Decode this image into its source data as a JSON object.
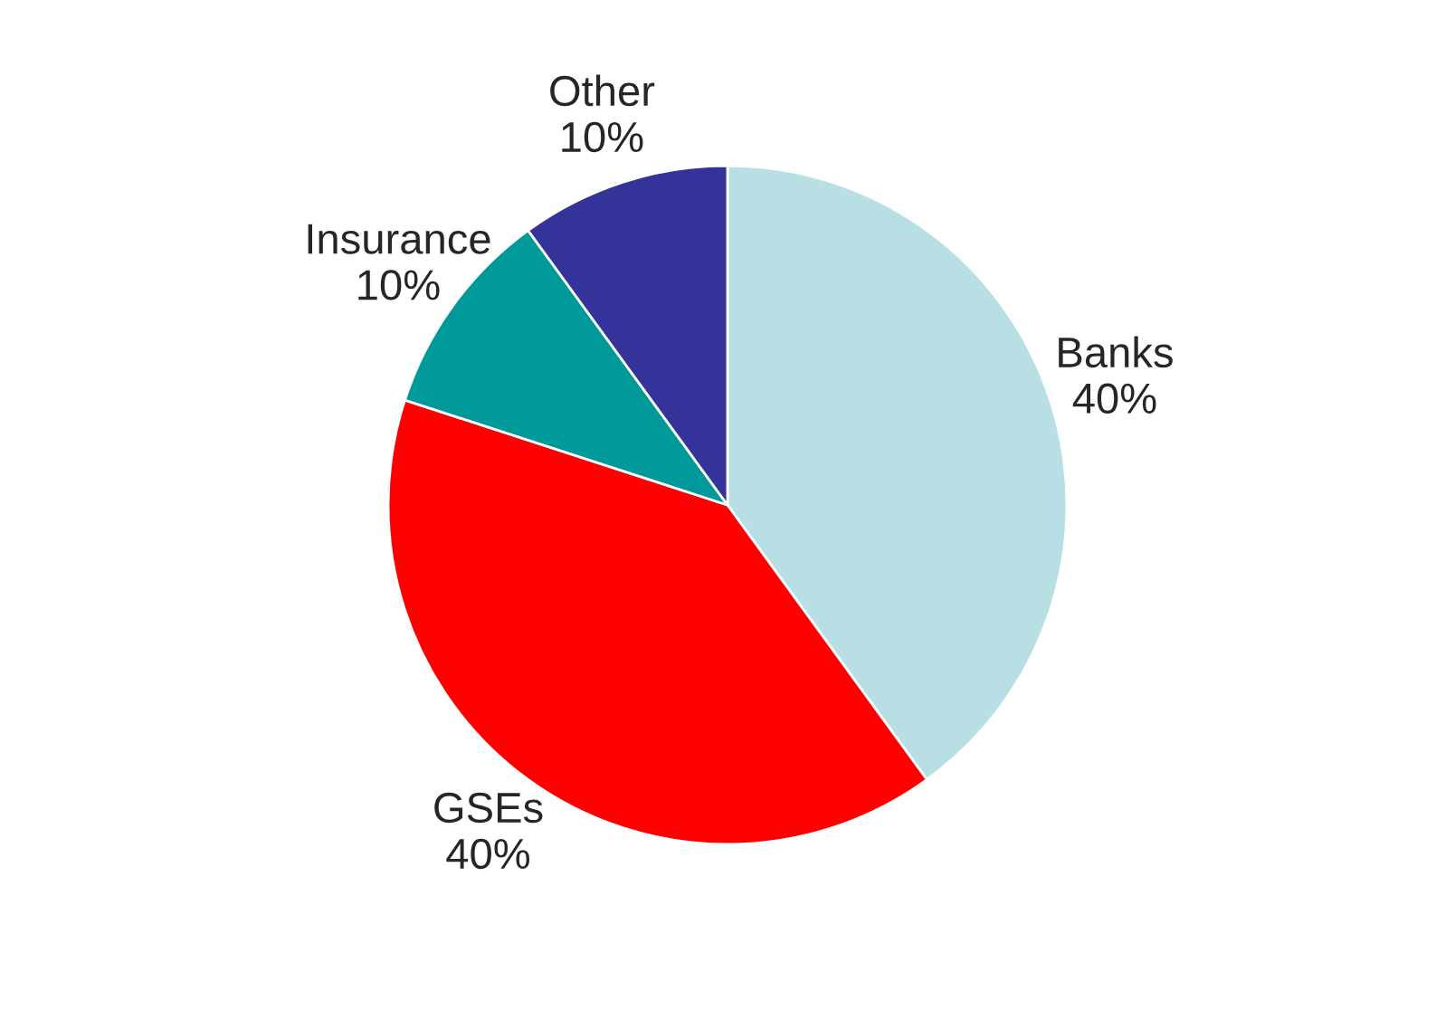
{
  "chart_data": {
    "type": "pie",
    "categories": [
      "Banks",
      "GSEs",
      "Insurance",
      "Other"
    ],
    "values": [
      40,
      40,
      10,
      10
    ],
    "colors": [
      "#b8e0e4",
      "#ff0000",
      "#009999",
      "#333399"
    ],
    "value_labels": [
      "40%",
      "40%",
      "10%",
      "10%"
    ]
  }
}
